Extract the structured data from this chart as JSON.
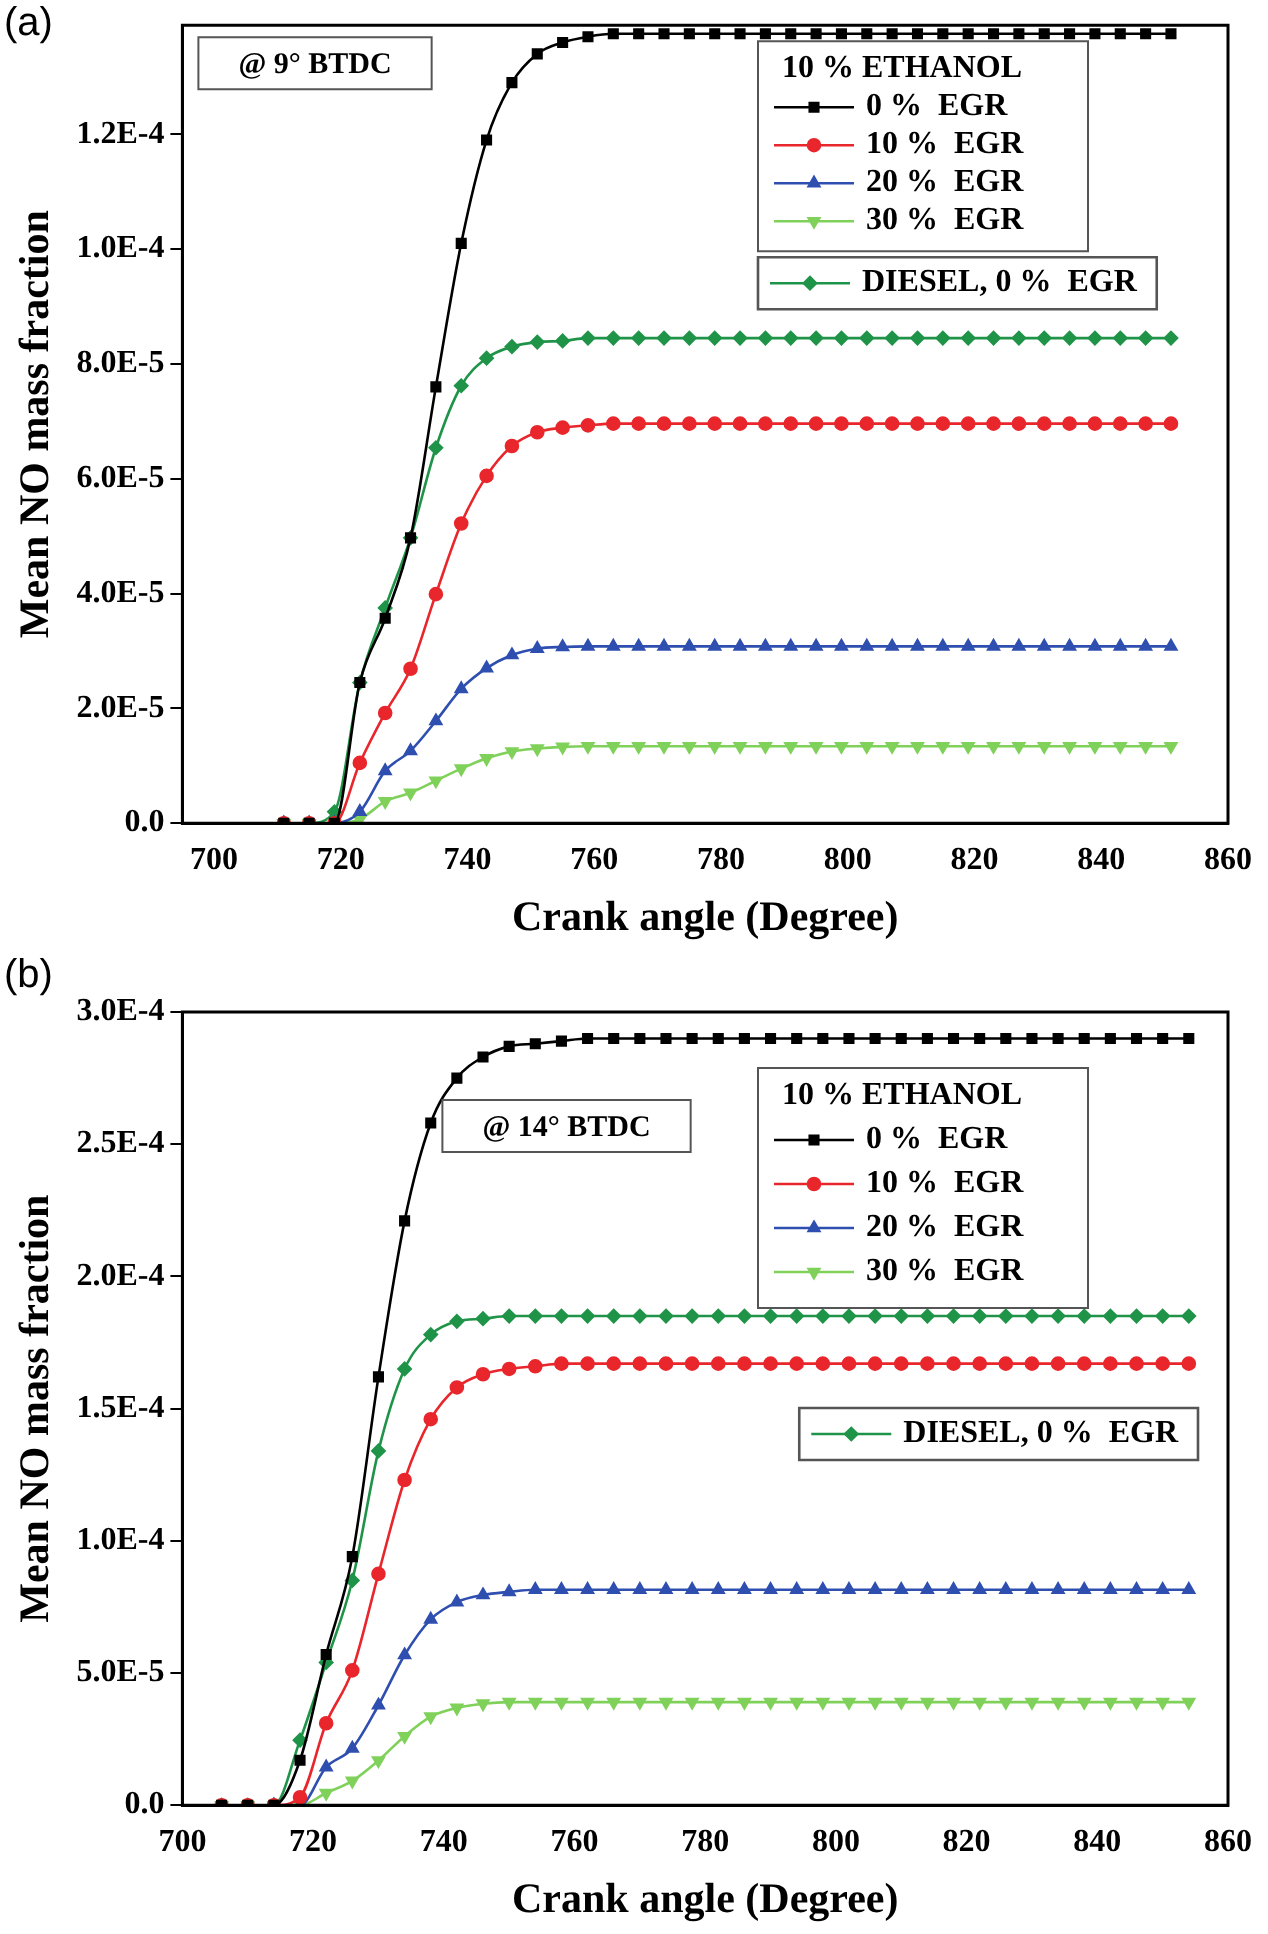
{
  "chart_data": [
    {
      "type": "line",
      "title": "(a)",
      "xlabel": "Crank angle (Degree)",
      "ylabel": "Mean NO mass fraction",
      "legend_title": "10 % ETHANOL",
      "legend": "top right",
      "annotations": [
        "@ 9° BTDC"
      ],
      "x": [
        711,
        715,
        719,
        723,
        727,
        731,
        735,
        739,
        743,
        747,
        751,
        755,
        759,
        763,
        767,
        771,
        775,
        779,
        783,
        787,
        791,
        795,
        799,
        803,
        807,
        811,
        815,
        819,
        823,
        827,
        831,
        835,
        839,
        843,
        847,
        851
      ],
      "xlim": [
        695,
        860
      ],
      "xticks": [
        700,
        720,
        740,
        760,
        780,
        800,
        820,
        840,
        860
      ],
      "ylim": [
        0,
        0.000139
      ],
      "yticks": [
        {
          "value": 0,
          "label": "0.0"
        },
        {
          "value": 2e-05,
          "label": "2.0E-5"
        },
        {
          "value": 4e-05,
          "label": "4.0E-5"
        },
        {
          "value": 6e-05,
          "label": "6.0E-5"
        },
        {
          "value": 8e-05,
          "label": "8.0E-5"
        },
        {
          "value": 0.0001,
          "label": "1.0E-4"
        },
        {
          "value": 0.00012,
          "label": "1.2E-4"
        }
      ],
      "series": [
        {
          "name": "0 %  EGR",
          "color": "#000000",
          "marker": "square",
          "values": [
            0,
            0,
            0,
            2.45e-05,
            3.57e-05,
            4.97e-05,
            7.6e-05,
            0.000101,
            0.000119,
            0.000129,
            0.000134,
            0.000136,
            0.000137,
            0.0001375,
            0.0001375,
            0.0001375,
            0.0001375,
            0.0001375,
            0.0001375,
            0.0001375,
            0.0001375,
            0.0001375,
            0.0001375,
            0.0001375,
            0.0001375,
            0.0001375,
            0.0001375,
            0.0001375,
            0.0001375,
            0.0001375,
            0.0001375,
            0.0001375,
            0.0001375,
            0.0001375,
            0.0001375,
            0.0001375
          ]
        },
        {
          "name": "10 %  EGR",
          "color": "#e8262b",
          "marker": "circle",
          "values": [
            0,
            0,
            0,
            1.05e-05,
            1.92e-05,
            2.69e-05,
            3.99e-05,
            5.22e-05,
            6.05e-05,
            6.57e-05,
            6.81e-05,
            6.89e-05,
            6.93e-05,
            6.96e-05,
            6.96e-05,
            6.96e-05,
            6.96e-05,
            6.96e-05,
            6.96e-05,
            6.96e-05,
            6.96e-05,
            6.96e-05,
            6.96e-05,
            6.96e-05,
            6.96e-05,
            6.96e-05,
            6.96e-05,
            6.96e-05,
            6.96e-05,
            6.96e-05,
            6.96e-05,
            6.96e-05,
            6.96e-05,
            6.96e-05,
            6.96e-05,
            6.96e-05
          ]
        },
        {
          "name": "20 %  EGR",
          "color": "#2f4fb0",
          "marker": "triangle",
          "values": [
            0,
            0,
            0,
            2e-06,
            9.1e-06,
            1.26e-05,
            1.78e-05,
            2.34e-05,
            2.7e-05,
            2.93e-05,
            3.04e-05,
            3.07e-05,
            3.08e-05,
            3.08e-05,
            3.08e-05,
            3.08e-05,
            3.08e-05,
            3.08e-05,
            3.08e-05,
            3.08e-05,
            3.08e-05,
            3.08e-05,
            3.08e-05,
            3.08e-05,
            3.08e-05,
            3.08e-05,
            3.08e-05,
            3.08e-05,
            3.08e-05,
            3.08e-05,
            3.08e-05,
            3.08e-05,
            3.08e-05,
            3.08e-05,
            3.08e-05,
            3.08e-05
          ]
        },
        {
          "name": "30 %  EGR",
          "color": "#7fd15a",
          "marker": "triangle-down",
          "values": [
            0,
            0,
            0,
            7e-07,
            3.8e-06,
            5.3e-06,
            7.4e-06,
            9.5e-06,
            1.13e-05,
            1.25e-05,
            1.3e-05,
            1.33e-05,
            1.34e-05,
            1.34e-05,
            1.34e-05,
            1.34e-05,
            1.34e-05,
            1.34e-05,
            1.34e-05,
            1.34e-05,
            1.34e-05,
            1.34e-05,
            1.34e-05,
            1.34e-05,
            1.34e-05,
            1.34e-05,
            1.34e-05,
            1.34e-05,
            1.34e-05,
            1.34e-05,
            1.34e-05,
            1.34e-05,
            1.34e-05,
            1.34e-05,
            1.34e-05,
            1.34e-05
          ]
        },
        {
          "name": "DIESEL, 0 %  EGR",
          "color": "#1f9448",
          "marker": "diamond",
          "values": [
            0,
            0,
            2e-06,
            2.45e-05,
            3.75e-05,
            4.97e-05,
            6.54e-05,
            7.62e-05,
            8.1e-05,
            8.3e-05,
            8.38e-05,
            8.4e-05,
            8.45e-05,
            8.45e-05,
            8.45e-05,
            8.45e-05,
            8.45e-05,
            8.45e-05,
            8.45e-05,
            8.45e-05,
            8.45e-05,
            8.45e-05,
            8.45e-05,
            8.45e-05,
            8.45e-05,
            8.45e-05,
            8.45e-05,
            8.45e-05,
            8.45e-05,
            8.45e-05,
            8.45e-05,
            8.45e-05,
            8.45e-05,
            8.45e-05,
            8.45e-05,
            8.45e-05
          ]
        }
      ]
    },
    {
      "type": "line",
      "title": "(b)",
      "xlabel": "Crank angle (Degree)",
      "ylabel": "Mean NO mass fraction",
      "legend_title": "10 % ETHANOL",
      "legend": "top right",
      "annotations": [
        "@ 14° BTDC"
      ],
      "x": [
        706,
        710,
        714,
        718,
        722,
        726,
        730,
        734,
        738,
        742,
        746,
        750,
        754,
        758,
        762,
        766,
        770,
        774,
        778,
        782,
        786,
        790,
        794,
        798,
        802,
        806,
        810,
        814,
        818,
        822,
        826,
        830,
        834,
        838,
        842,
        846,
        850,
        854
      ],
      "xlim": [
        700,
        860
      ],
      "xticks": [
        700,
        720,
        740,
        760,
        780,
        800,
        820,
        840,
        860
      ],
      "ylim": [
        0,
        0.0003
      ],
      "yticks": [
        {
          "value": 0,
          "label": "0.0"
        },
        {
          "value": 5e-05,
          "label": "5.0E-5"
        },
        {
          "value": 0.0001,
          "label": "1.0E-4"
        },
        {
          "value": 0.00015,
          "label": "1.5E-4"
        },
        {
          "value": 0.0002,
          "label": "2.0E-4"
        },
        {
          "value": 0.00025,
          "label": "2.5E-4"
        },
        {
          "value": 0.0003,
          "label": "3.0E-4"
        }
      ],
      "series": [
        {
          "name": "0 %  EGR",
          "color": "#000000",
          "marker": "square",
          "values": [
            0,
            0,
            0,
            1.7e-05,
            5.7e-05,
            9.4e-05,
            0.000162,
            0.000221,
            0.000258,
            0.000275,
            0.000283,
            0.000287,
            0.000288,
            0.000289,
            0.00029,
            0.00029,
            0.00029,
            0.00029,
            0.00029,
            0.00029,
            0.00029,
            0.00029,
            0.00029,
            0.00029,
            0.00029,
            0.00029,
            0.00029,
            0.00029,
            0.00029,
            0.00029,
            0.00029,
            0.00029,
            0.00029,
            0.00029,
            0.00029,
            0.00029,
            0.00029,
            0.00029
          ]
        },
        {
          "name": "10 %  EGR",
          "color": "#e8262b",
          "marker": "circle",
          "values": [
            0,
            0,
            0,
            3e-06,
            3.1e-05,
            5.1e-05,
            8.75e-05,
            0.000123,
            0.000146,
            0.000158,
            0.000163,
            0.000165,
            0.000166,
            0.000167,
            0.000167,
            0.000167,
            0.000167,
            0.000167,
            0.000167,
            0.000167,
            0.000167,
            0.000167,
            0.000167,
            0.000167,
            0.000167,
            0.000167,
            0.000167,
            0.000167,
            0.000167,
            0.000167,
            0.000167,
            0.000167,
            0.000167,
            0.000167,
            0.000167,
            0.000167,
            0.000167,
            0.000167
          ]
        },
        {
          "name": "20 %  EGR",
          "color": "#2f4fb0",
          "marker": "triangle",
          "values": [
            null,
            null,
            0,
            0,
            1.44e-05,
            2.15e-05,
            3.78e-05,
            5.68e-05,
            7.03e-05,
            7.68e-05,
            7.95e-05,
            8.07e-05,
            8.15e-05,
            8.15e-05,
            8.15e-05,
            8.15e-05,
            8.15e-05,
            8.15e-05,
            8.15e-05,
            8.15e-05,
            8.15e-05,
            8.15e-05,
            8.15e-05,
            8.15e-05,
            8.15e-05,
            8.15e-05,
            8.15e-05,
            8.15e-05,
            8.15e-05,
            8.15e-05,
            8.15e-05,
            8.15e-05,
            8.15e-05,
            8.15e-05,
            8.15e-05,
            8.15e-05,
            8.15e-05,
            8.15e-05
          ]
        },
        {
          "name": "30 %  EGR",
          "color": "#7fd15a",
          "marker": "triangle-down",
          "values": [
            0,
            0,
            0,
            0,
            4.6e-06,
            9.2e-06,
            1.69e-05,
            2.61e-05,
            3.35e-05,
            3.68e-05,
            3.84e-05,
            3.9e-05,
            3.9e-05,
            3.9e-05,
            3.9e-05,
            3.9e-05,
            3.9e-05,
            3.9e-05,
            3.9e-05,
            3.9e-05,
            3.9e-05,
            3.9e-05,
            3.9e-05,
            3.9e-05,
            3.9e-05,
            3.9e-05,
            3.9e-05,
            3.9e-05,
            3.9e-05,
            3.9e-05,
            3.9e-05,
            3.9e-05,
            3.9e-05,
            3.9e-05,
            3.9e-05,
            3.9e-05,
            3.9e-05,
            3.9e-05
          ]
        },
        {
          "name": "DIESEL, 0 %  EGR",
          "color": "#1f9448",
          "marker": "diamond",
          "values": [
            0,
            0,
            0,
            2.46e-05,
            5.4e-05,
            8.5e-05,
            0.000134,
            0.000165,
            0.000178,
            0.000183,
            0.000184,
            0.000185,
            0.000185,
            0.000185,
            0.000185,
            0.000185,
            0.000185,
            0.000185,
            0.000185,
            0.000185,
            0.000185,
            0.000185,
            0.000185,
            0.000185,
            0.000185,
            0.000185,
            0.000185,
            0.000185,
            0.000185,
            0.000185,
            0.000185,
            0.000185,
            0.000185,
            0.000185,
            0.000185,
            0.000185,
            0.000185,
            0.000185
          ]
        }
      ]
    }
  ]
}
